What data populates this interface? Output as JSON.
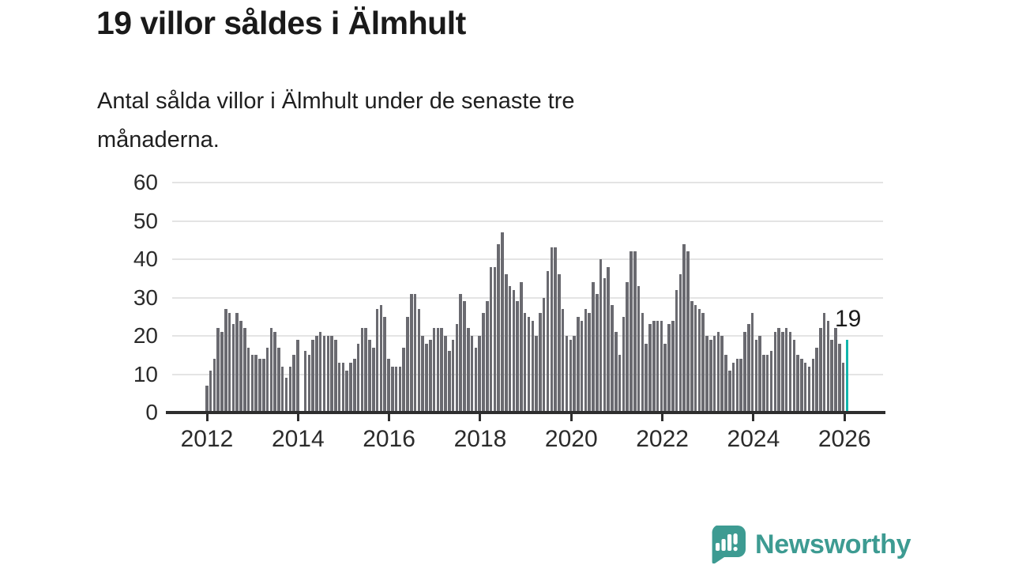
{
  "header": {
    "title": "19 villor såldes i Älmhult",
    "subtitle_line1": "Antal sålda villor i Älmhult under de senaste tre",
    "subtitle_line2": "månaderna."
  },
  "chart_data": {
    "type": "bar",
    "title": "19 villor såldes i Älmhult",
    "description": "Antal sålda villor i Älmhult under de senaste tre månaderna.",
    "x_start": "2012-01",
    "frequency": "monthly-rolling-3-month-count",
    "x_tick_labels": [
      "2012",
      "2014",
      "2016",
      "2018",
      "2020",
      "2022",
      "2024",
      "2026"
    ],
    "y_tick_labels": [
      "0",
      "10",
      "20",
      "30",
      "40",
      "50",
      "60"
    ],
    "yticks": [
      0,
      10,
      20,
      30,
      40,
      50,
      60
    ],
    "ylim": [
      0,
      60
    ],
    "grid": "horizontal",
    "legend": "none",
    "bar_color": "#6a6a70",
    "highlight_color": "#12b5ac",
    "highlight_index": 169,
    "highlight_label": "19",
    "values": [
      7,
      11,
      14,
      22,
      21,
      27,
      26,
      23,
      26,
      24,
      22,
      17,
      15,
      15,
      14,
      14,
      17,
      22,
      21,
      17,
      12,
      9,
      12,
      15,
      19,
      0,
      16,
      15,
      19,
      20,
      21,
      20,
      20,
      20,
      19,
      13,
      13,
      11,
      13,
      14,
      18,
      22,
      22,
      19,
      17,
      27,
      28,
      25,
      14,
      12,
      12,
      12,
      17,
      25,
      31,
      31,
      27,
      20,
      18,
      19,
      22,
      22,
      22,
      20,
      16,
      19,
      23,
      31,
      29,
      22,
      20,
      17,
      20,
      26,
      29,
      38,
      38,
      44,
      47,
      36,
      33,
      32,
      29,
      34,
      26,
      25,
      24,
      20,
      26,
      30,
      37,
      43,
      43,
      36,
      27,
      20,
      19,
      20,
      25,
      24,
      27,
      26,
      34,
      31,
      40,
      35,
      38,
      28,
      21,
      15,
      25,
      34,
      42,
      42,
      33,
      26,
      18,
      23,
      24,
      24,
      24,
      18,
      23,
      24,
      32,
      36,
      44,
      42,
      29,
      28,
      27,
      26,
      20,
      19,
      20,
      21,
      20,
      15,
      11,
      13,
      14,
      14,
      21,
      23,
      26,
      19,
      20,
      15,
      15,
      16,
      21,
      22,
      21,
      22,
      21,
      19,
      15,
      14,
      13,
      12,
      14,
      17,
      22,
      26,
      24,
      19,
      22,
      18,
      13,
      19
    ]
  },
  "annotation": {
    "last_value_label": "19"
  },
  "branding": {
    "logo_text": "Newsworthy",
    "logo_color": "#3d9b92"
  }
}
